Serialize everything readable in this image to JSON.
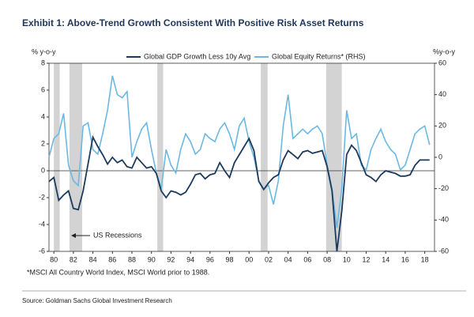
{
  "chart_data": {
    "type": "line",
    "title": "Exhibit 1: Above-Trend Growth Consistent With Positive Risk Asset Returns",
    "y_label": "% y-o-y",
    "y2_label": "%y-o-y",
    "footnote": "*MSCI All Country World Index, MSCI World prior to 1988.",
    "source": "Source: Goldman Sachs Global Investment Research",
    "annotation": "US Recessions",
    "recessions": [
      [
        1980.0,
        1980.6
      ],
      [
        1981.6,
        1982.9
      ],
      [
        1990.6,
        1991.2
      ],
      [
        2001.2,
        2001.9
      ],
      [
        2007.9,
        2009.5
      ]
    ],
    "recession_color": "#d3d3d3",
    "x": [
      1979.5,
      1980,
      1980.5,
      1981,
      1981.5,
      1982,
      1982.5,
      1983,
      1983.5,
      1984,
      1984.5,
      1985,
      1985.5,
      1986,
      1986.5,
      1987,
      1987.5,
      1988,
      1988.5,
      1989,
      1989.5,
      1990,
      1990.5,
      1991,
      1991.5,
      1992,
      1992.5,
      1993,
      1993.5,
      1994,
      1994.5,
      1995,
      1995.5,
      1996,
      1996.5,
      1997,
      1997.5,
      1998,
      1998.5,
      1999,
      1999.5,
      2000,
      2000.5,
      2001,
      2001.5,
      2002,
      2002.5,
      2003,
      2003.5,
      2004,
      2004.5,
      2005,
      2005.5,
      2006,
      2006.5,
      2007,
      2007.5,
      2008,
      2008.5,
      2009,
      2009.5,
      2010,
      2010.5,
      2011,
      2011.5,
      2012,
      2012.5,
      2013,
      2013.5,
      2014,
      2014.5,
      2015,
      2015.5,
      2016,
      2016.5,
      2017,
      2017.5,
      2018,
      2018.5
    ],
    "series": [
      {
        "name": "Global GDP Growth Less 10y Avg",
        "color": "#1c3a5e",
        "axis": "y",
        "values": [
          -0.8,
          -0.5,
          -2.2,
          -1.8,
          -1.5,
          -2.8,
          -2.9,
          -1.5,
          0.5,
          2.5,
          1.8,
          1.2,
          0.5,
          1.0,
          0.6,
          0.8,
          0.3,
          0.2,
          1.0,
          0.6,
          0.2,
          0.3,
          -0.2,
          -1.5,
          -2.0,
          -1.5,
          -1.6,
          -1.8,
          -1.6,
          -1.0,
          -0.3,
          -0.2,
          -0.6,
          -0.3,
          -0.2,
          0.6,
          0.0,
          -0.5,
          0.6,
          1.2,
          1.8,
          2.4,
          1.5,
          -0.8,
          -1.4,
          -0.9,
          -0.5,
          -0.3,
          0.8,
          1.5,
          1.2,
          0.9,
          1.4,
          1.5,
          1.3,
          1.4,
          1.5,
          0.3,
          -1.5,
          -6.0,
          -3.0,
          1.2,
          1.9,
          1.5,
          0.6,
          -0.3,
          -0.5,
          -0.8,
          -0.3,
          0.0,
          -0.1,
          -0.2,
          -0.4,
          -0.4,
          -0.3,
          0.4,
          0.8,
          0.8,
          0.8
        ]
      },
      {
        "name": "Global Equity Returns* (RHS)",
        "color": "#6cb8e2",
        "axis": "y2",
        "values": [
          0,
          12,
          15,
          28,
          -5,
          -15,
          -18,
          20,
          22,
          5,
          2,
          15,
          30,
          52,
          40,
          38,
          42,
          0,
          10,
          18,
          22,
          5,
          -10,
          -20,
          5,
          -5,
          -10,
          5,
          15,
          10,
          2,
          5,
          15,
          12,
          10,
          18,
          22,
          15,
          5,
          20,
          25,
          10,
          0,
          -15,
          -20,
          -18,
          -30,
          -15,
          20,
          40,
          12,
          15,
          18,
          15,
          18,
          20,
          15,
          -5,
          -20,
          -45,
          -20,
          30,
          12,
          15,
          -5,
          -8,
          5,
          12,
          18,
          10,
          5,
          2,
          -8,
          -5,
          5,
          15,
          18,
          20,
          8
        ]
      }
    ],
    "xlim": [
      1979.5,
      2019
    ],
    "xticks": [
      {
        "value": 1980,
        "label": "80"
      },
      {
        "value": 1982,
        "label": "82"
      },
      {
        "value": 1984,
        "label": "84"
      },
      {
        "value": 1986,
        "label": "86"
      },
      {
        "value": 1988,
        "label": "88"
      },
      {
        "value": 1990,
        "label": "90"
      },
      {
        "value": 1992,
        "label": "92"
      },
      {
        "value": 1994,
        "label": "94"
      },
      {
        "value": 1996,
        "label": "96"
      },
      {
        "value": 1998,
        "label": "98"
      },
      {
        "value": 2000,
        "label": "00"
      },
      {
        "value": 2002,
        "label": "02"
      },
      {
        "value": 2004,
        "label": "04"
      },
      {
        "value": 2006,
        "label": "06"
      },
      {
        "value": 2008,
        "label": "08"
      },
      {
        "value": 2010,
        "label": "10"
      },
      {
        "value": 2012,
        "label": "12"
      },
      {
        "value": 2014,
        "label": "14"
      },
      {
        "value": 2016,
        "label": "16"
      },
      {
        "value": 2018,
        "label": "18"
      }
    ],
    "ylim": [
      -6,
      8
    ],
    "yticks": [
      -6,
      -4,
      -2,
      0,
      2,
      4,
      6,
      8
    ],
    "y2lim": [
      -60,
      60
    ],
    "y2ticks": [
      -60,
      -40,
      -20,
      0,
      20,
      40,
      60
    ]
  }
}
